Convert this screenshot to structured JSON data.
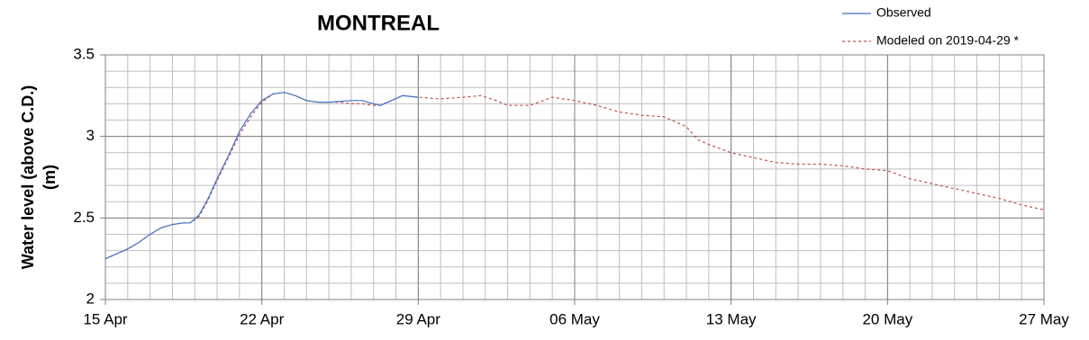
{
  "chart_data": {
    "type": "line",
    "title": "MONTREAL",
    "ylabel": [
      "Water level (above C.D.)",
      "(m)"
    ],
    "xlim": [
      0,
      42
    ],
    "xticks": [
      {
        "value": 0,
        "label": "15 Apr"
      },
      {
        "value": 7,
        "label": "22 Apr"
      },
      {
        "value": 14,
        "label": "29 Apr"
      },
      {
        "value": 21,
        "label": "06 May"
      },
      {
        "value": 28,
        "label": "13 May"
      },
      {
        "value": 35,
        "label": "20 May"
      },
      {
        "value": 42,
        "label": "27 May"
      }
    ],
    "ylim": [
      2,
      3.5
    ],
    "yticks": [
      2,
      2.5,
      3,
      3.5
    ],
    "grid": true,
    "minor_grid": {
      "x": 1,
      "y": 0.1
    },
    "legend": "top-right",
    "series": [
      {
        "name": "Observed",
        "color": "#4472c4",
        "dash": false,
        "x": [
          0,
          0.5,
          1,
          1.5,
          2,
          2.5,
          3,
          3.5,
          3.8,
          4.2,
          4.6,
          5,
          5.5,
          6,
          6.5,
          7,
          7.5,
          8,
          8.5,
          9,
          9.5,
          10,
          11,
          11.5,
          12,
          12.3,
          12.8,
          13.3,
          14
        ],
        "values": [
          2.25,
          2.28,
          2.31,
          2.35,
          2.4,
          2.44,
          2.46,
          2.47,
          2.47,
          2.52,
          2.62,
          2.74,
          2.88,
          3.03,
          3.14,
          3.22,
          3.26,
          3.27,
          3.25,
          3.22,
          3.21,
          3.21,
          3.22,
          3.22,
          3.2,
          3.19,
          3.22,
          3.25,
          3.24
        ]
      },
      {
        "name": "Modeled on 2019-04-29 *",
        "color": "#c0504d",
        "dash": true,
        "x": [
          0,
          0.5,
          1,
          1.5,
          2,
          2.5,
          3,
          3.5,
          3.8,
          4.2,
          4.6,
          5,
          5.5,
          6,
          6.5,
          7,
          7.5,
          8,
          8.5,
          9,
          9.5,
          10,
          10.5,
          11,
          11.5,
          12,
          12.3,
          12.8,
          13.3,
          14,
          15,
          16,
          16.8,
          17.5,
          18,
          19,
          20,
          21,
          22,
          23,
          24,
          25,
          26,
          26.5,
          27,
          28,
          29,
          30,
          31,
          32,
          33,
          34,
          35,
          36,
          37,
          38,
          39,
          40,
          41,
          42
        ],
        "values": [
          2.25,
          2.28,
          2.31,
          2.35,
          2.4,
          2.44,
          2.46,
          2.47,
          2.47,
          2.51,
          2.61,
          2.73,
          2.87,
          3.01,
          3.12,
          3.21,
          3.26,
          3.27,
          3.25,
          3.22,
          3.21,
          3.21,
          3.21,
          3.2,
          3.2,
          3.19,
          3.19,
          3.22,
          3.25,
          3.24,
          3.23,
          3.24,
          3.25,
          3.22,
          3.19,
          3.19,
          3.24,
          3.22,
          3.19,
          3.15,
          3.13,
          3.12,
          3.06,
          2.98,
          2.95,
          2.9,
          2.87,
          2.84,
          2.83,
          2.83,
          2.82,
          2.8,
          2.79,
          2.74,
          2.71,
          2.68,
          2.65,
          2.62,
          2.58,
          2.55
        ]
      }
    ]
  }
}
